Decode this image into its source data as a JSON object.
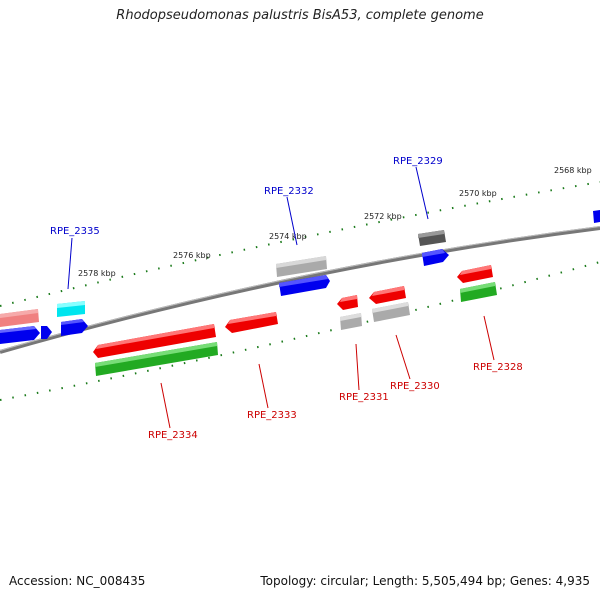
{
  "title": "Rhodopseudomonas palustris BisA53, complete genome",
  "footer": {
    "accession": "Accession: NC_008435",
    "topology": "Topology: circular; Length: 5,505,494 bp; Genes: 4,935"
  },
  "ticks": [
    "2578 kbp",
    "2576 kbp",
    "2574 kbp",
    "2572 kbp",
    "2570 kbp",
    "2568 kbp"
  ],
  "gene_labels": {
    "top": [
      "RPE_2335",
      "RPE_2332",
      "RPE_2329"
    ],
    "bottom": [
      "RPE_2334",
      "RPE_2333",
      "RPE_2331",
      "RPE_2330",
      "RPE_2328"
    ]
  },
  "colors": {
    "backbone": "#777777",
    "forward_strand": "#0000ff",
    "reverse_strand": "#ff0000",
    "label_top": "#0000cc",
    "label_bottom": "#cc0000",
    "tick": "#1a7a1a"
  }
}
